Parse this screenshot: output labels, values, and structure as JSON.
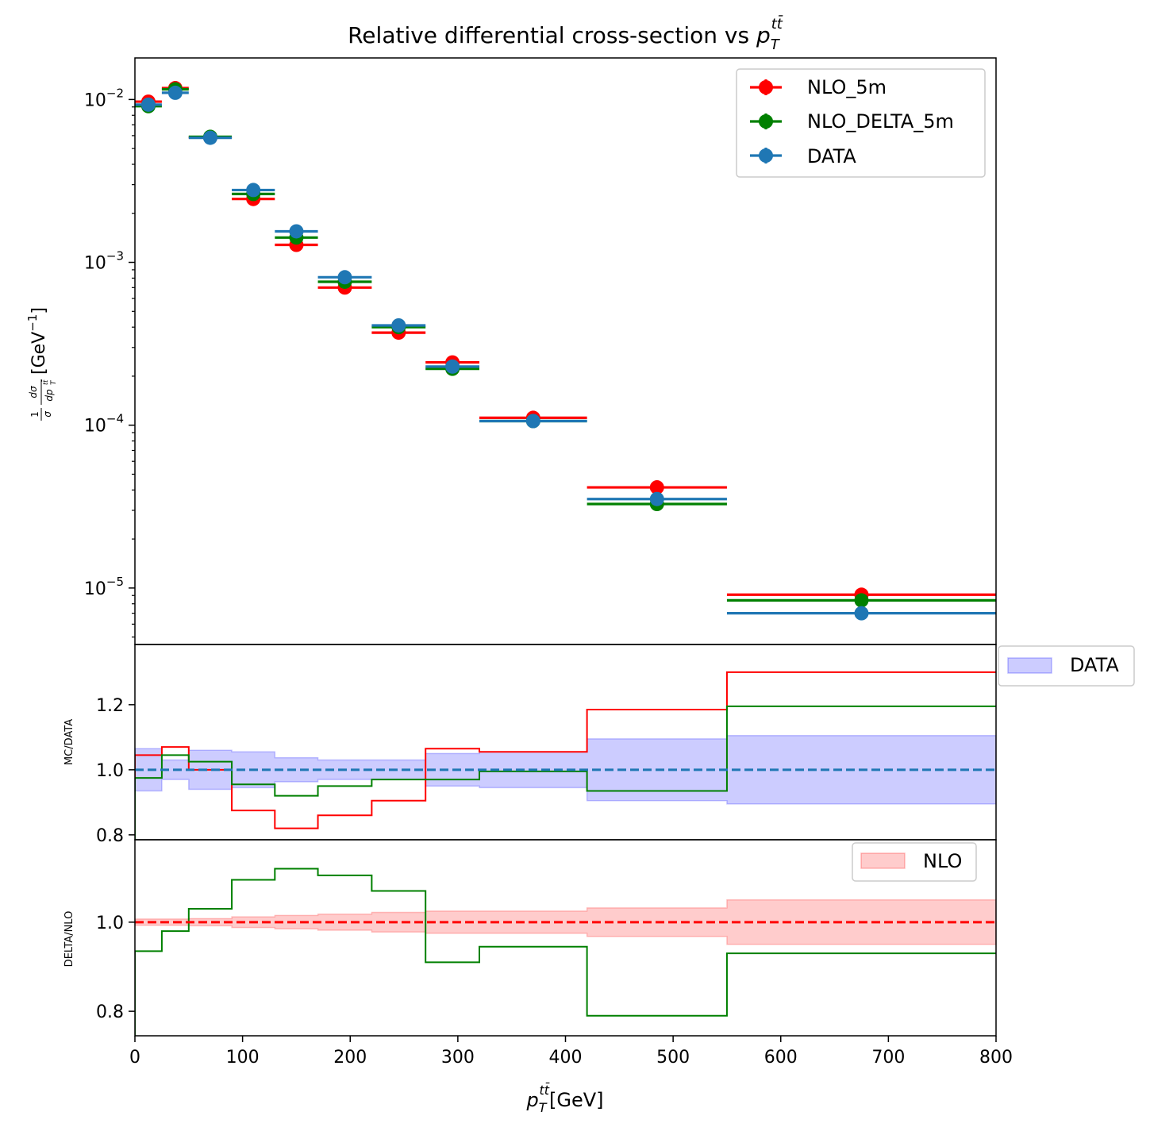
{
  "chart_data": {
    "type": "scatter",
    "title_main": "Relative differential cross-section vs ",
    "title_var": "p",
    "title_sub": "T",
    "title_sup": "tt̄",
    "xlabel_var": "p",
    "xlabel_sub": "T",
    "xlabel_sup": "tt̄",
    "xlabel_unit": "[GeV]",
    "xlim": [
      0,
      800
    ],
    "xticks": [
      0,
      100,
      200,
      300,
      400,
      500,
      600,
      700,
      800
    ],
    "bin_edges": [
      0,
      25,
      50,
      90,
      130,
      170,
      220,
      270,
      320,
      420,
      550,
      800
    ],
    "top_panel": {
      "yscale": "log",
      "ylim": [
        4.5e-06,
        0.018
      ],
      "yticks": [
        0.01,
        0.001,
        0.0001,
        1e-05
      ],
      "ytick_labels": [
        {
          "base": "10",
          "exp": "−2"
        },
        {
          "base": "10",
          "exp": "−3"
        },
        {
          "base": "10",
          "exp": "−4"
        },
        {
          "base": "10",
          "exp": "−5"
        }
      ],
      "ylabel": "1 dσ / σ dpT^tt̄ [GeV^−1]",
      "ylabel_unit_base": "[GeV",
      "ylabel_unit_exp": "−1",
      "ylabel_unit_end": "]",
      "legend": {
        "placement": "top-right",
        "entries": [
          "NLO_5m",
          "NLO_DELTA_5m",
          "DATA"
        ]
      },
      "series": [
        {
          "name": "NLO_5m",
          "color": "#ff0000",
          "values": [
            0.0097,
            0.01175,
            0.00585,
            0.00245,
            0.00128,
            0.0007,
            0.00037,
            0.000243,
            0.000111,
            4.15e-05,
            9.1e-06
          ]
        },
        {
          "name": "NLO_DELTA_5m",
          "color": "#008000",
          "values": [
            0.0091,
            0.01155,
            0.0059,
            0.00263,
            0.00142,
            0.00076,
            0.0004,
            0.000222,
            0.000106,
            3.28e-05,
            8.4e-06
          ]
        },
        {
          "name": "DATA",
          "color": "#1f77b4",
          "values": [
            0.0093,
            0.011,
            0.00582,
            0.00278,
            0.00155,
            0.00081,
            0.00041,
            0.000229,
            0.000106,
            3.52e-05,
            7e-06
          ]
        }
      ]
    },
    "ratio_panel_1": {
      "ylabel": "MC/DATA",
      "ylim": [
        0.785,
        1.385
      ],
      "yticks": [
        0.8,
        1.0,
        1.2
      ],
      "ytick_labels": [
        "0.8",
        "1.0",
        "1.2"
      ],
      "legend": {
        "placement": "outside-right",
        "entries": [
          "DATA"
        ]
      },
      "band": {
        "name": "DATA",
        "color": "#0000ff",
        "low": [
          0.935,
          0.97,
          0.94,
          0.945,
          0.963,
          0.97,
          0.97,
          0.95,
          0.945,
          0.905,
          0.895
        ],
        "high": [
          1.065,
          1.03,
          1.06,
          1.055,
          1.037,
          1.03,
          1.03,
          1.05,
          1.055,
          1.095,
          1.105
        ]
      },
      "reference": {
        "value": 1.0,
        "color": "#1f77b4"
      },
      "series": [
        {
          "name": "NLO_5m",
          "color": "#ff0000",
          "values": [
            1.045,
            1.07,
            1.0,
            0.875,
            0.82,
            0.86,
            0.905,
            1.065,
            1.055,
            1.185,
            1.3
          ]
        },
        {
          "name": "NLO_DELTA_5m",
          "color": "#008000",
          "values": [
            0.975,
            1.045,
            1.025,
            0.955,
            0.92,
            0.95,
            0.97,
            0.97,
            0.995,
            0.935,
            1.195
          ]
        }
      ]
    },
    "ratio_panel_2": {
      "ylabel": "DELTA/NLO",
      "ylim": [
        0.745,
        1.185
      ],
      "yticks": [
        0.8,
        1.0
      ],
      "ytick_labels": [
        "0.8",
        "1.0"
      ],
      "legend": {
        "placement": "top-right",
        "entries": [
          "NLO"
        ]
      },
      "band": {
        "name": "NLO",
        "color": "#ff0000",
        "low": [
          0.993,
          0.993,
          0.992,
          0.988,
          0.985,
          0.982,
          0.978,
          0.975,
          0.975,
          0.968,
          0.95
        ],
        "high": [
          1.007,
          1.007,
          1.008,
          1.012,
          1.015,
          1.018,
          1.022,
          1.025,
          1.025,
          1.032,
          1.05
        ]
      },
      "reference": {
        "value": 1.0,
        "color": "#ff0000"
      },
      "series": [
        {
          "name": "NLO_DELTA_5m",
          "color": "#008000",
          "values": [
            0.935,
            0.98,
            1.03,
            1.095,
            1.12,
            1.105,
            1.07,
            0.91,
            0.945,
            0.79,
            0.93
          ]
        }
      ]
    }
  }
}
